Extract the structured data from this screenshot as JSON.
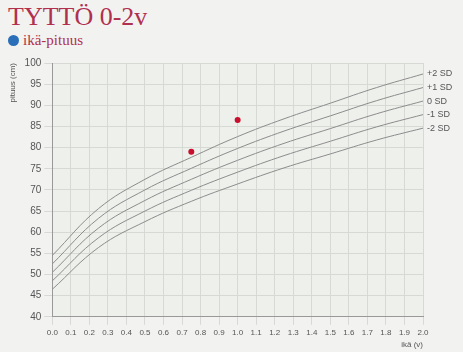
{
  "chart_data": {
    "type": "line",
    "title": "TYTTÖ 0-2v",
    "subtitle": "ikä-pituus",
    "x_label": "ikä (v)",
    "y_label": "pituus (cm)",
    "x": [
      0,
      0.25,
      0.5,
      0.75,
      1.0,
      1.25,
      1.5,
      1.75,
      2.0
    ],
    "series": [
      {
        "name": "+2 SD",
        "type": "line",
        "color": "#8c8c8c",
        "line_style": "solid",
        "marker": "none",
        "values": [
          54.5,
          65.6,
          72.5,
          77.7,
          82.6,
          86.8,
          90.5,
          94.2,
          97.4
        ]
      },
      {
        "name": "+1 SD",
        "type": "line",
        "color": "#8c8c8c",
        "line_style": "solid",
        "marker": "none",
        "values": [
          52.5,
          63.3,
          70.0,
          75.1,
          79.8,
          83.9,
          87.5,
          91.1,
          94.2
        ]
      },
      {
        "name": "0 SD",
        "type": "line",
        "color": "#8c8c8c",
        "line_style": "solid",
        "marker": "none",
        "values": [
          50.5,
          61.0,
          67.5,
          72.5,
          77.0,
          81.0,
          84.5,
          88.0,
          91.0
        ]
      },
      {
        "name": "-1 SD",
        "type": "line",
        "color": "#8c8c8c",
        "line_style": "solid",
        "marker": "none",
        "values": [
          48.5,
          58.7,
          65.0,
          69.9,
          74.2,
          78.1,
          81.5,
          84.9,
          87.8
        ]
      },
      {
        "name": "-2 SD",
        "type": "line",
        "color": "#8c8c8c",
        "line_style": "solid",
        "marker": "none",
        "values": [
          46.5,
          56.4,
          62.5,
          67.3,
          71.4,
          75.2,
          78.5,
          81.8,
          84.6
        ]
      },
      {
        "type": "scatter",
        "color": "#c8102e",
        "marker": "circle",
        "x": [
          0.75,
          1.0
        ],
        "values": [
          79,
          86.5
        ]
      }
    ],
    "xlim": [
      0,
      2
    ],
    "xticks": [
      {
        "value": 0,
        "label": "0.0"
      },
      0.1,
      0.2,
      0.3,
      0.4,
      0.5,
      0.6,
      0.7,
      0.8,
      0.9,
      {
        "value": 1,
        "label": "1.0"
      },
      1.1,
      1.2,
      1.3,
      1.4,
      1.5,
      1.6,
      1.7,
      1.8,
      1.9,
      {
        "value": 2,
        "label": "2.0"
      }
    ],
    "ylim": [
      40,
      100
    ],
    "yticks": [
      40,
      45,
      50,
      55,
      60,
      65,
      70,
      75,
      80,
      85,
      90,
      95,
      100
    ],
    "grid": true
  }
}
